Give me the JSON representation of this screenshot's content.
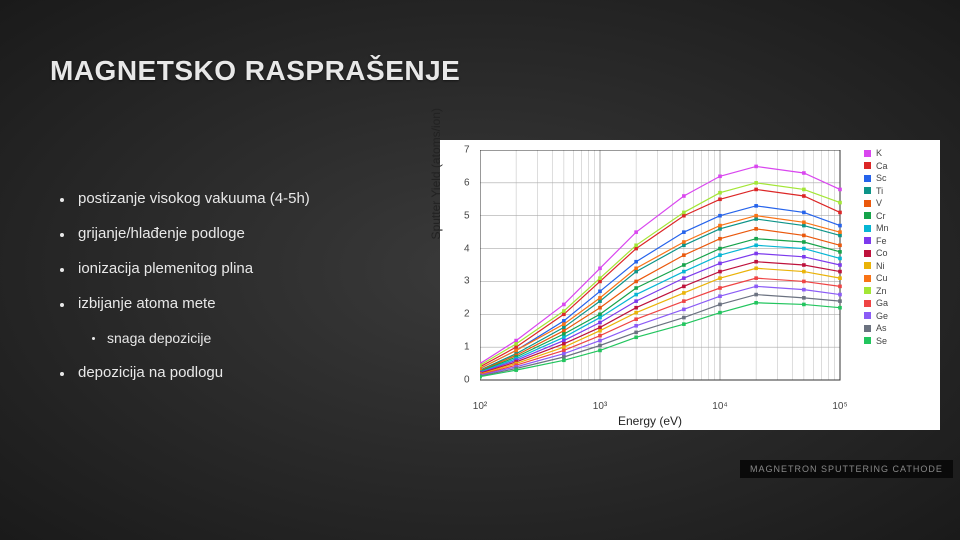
{
  "title": "MAGNETSKO RASPRAŠENJE",
  "bullets": [
    "postizanje visokog vakuuma (4-5h)",
    "grijanje/hlađenje podloge",
    "ionizacija plemenitog plina",
    "izbijanje atoma mete"
  ],
  "sub_bullet": "snaga depozicije",
  "bullet_after_sub": "depozicija na podlogu",
  "caption_behind": "MAGNETRON SPUTTERING CATHODE",
  "chart": {
    "type": "line",
    "xlabel": "Energy (eV)",
    "ylabel": "Sputter Yield (atoms/ion)",
    "xscale": "log",
    "xlim": [
      100,
      100000
    ],
    "ylim": [
      0,
      7
    ],
    "xticks": [
      100,
      1000,
      10000,
      100000
    ],
    "xtick_labels": [
      "10²",
      "10³",
      "10⁴",
      "10⁵"
    ],
    "yticks": [
      0,
      1,
      2,
      3,
      4,
      5,
      6,
      7
    ],
    "background_color": "#ffffff",
    "grid_color": "#aaaaaa",
    "axis_fontsize": 12,
    "tick_fontsize": 10,
    "legend_fontsize": 9,
    "series": [
      {
        "label": "K",
        "color": "#d946ef",
        "marker": "square",
        "x": [
          100,
          200,
          500,
          1000,
          2000,
          5000,
          10000,
          20000,
          50000,
          100000
        ],
        "y": [
          0.5,
          1.2,
          2.3,
          3.4,
          4.5,
          5.6,
          6.2,
          6.5,
          6.3,
          5.8
        ]
      },
      {
        "label": "Ca",
        "color": "#dc2626",
        "marker": "circle",
        "x": [
          100,
          200,
          500,
          1000,
          2000,
          5000,
          10000,
          20000,
          50000,
          100000
        ],
        "y": [
          0.4,
          1.0,
          2.0,
          3.0,
          4.0,
          5.0,
          5.5,
          5.8,
          5.6,
          5.1
        ]
      },
      {
        "label": "Sc",
        "color": "#2563eb",
        "marker": "x",
        "x": [
          100,
          200,
          500,
          1000,
          2000,
          5000,
          10000,
          20000,
          50000,
          100000
        ],
        "y": [
          0.35,
          0.9,
          1.8,
          2.7,
          3.6,
          4.5,
          5.0,
          5.3,
          5.1,
          4.7
        ]
      },
      {
        "label": "Ti",
        "color": "#0d9488",
        "marker": "triangle",
        "x": [
          100,
          200,
          500,
          1000,
          2000,
          5000,
          10000,
          20000,
          50000,
          100000
        ],
        "y": [
          0.3,
          0.8,
          1.6,
          2.4,
          3.3,
          4.1,
          4.6,
          4.9,
          4.7,
          4.4
        ]
      },
      {
        "label": "V",
        "color": "#ea580c",
        "marker": "diamond",
        "x": [
          100,
          200,
          500,
          1000,
          2000,
          5000,
          10000,
          20000,
          50000,
          100000
        ],
        "y": [
          0.28,
          0.75,
          1.5,
          2.2,
          3.0,
          3.8,
          4.3,
          4.6,
          4.4,
          4.1
        ]
      },
      {
        "label": "Cr",
        "color": "#16a34a",
        "marker": "plus",
        "x": [
          100,
          200,
          500,
          1000,
          2000,
          5000,
          10000,
          20000,
          50000,
          100000
        ],
        "y": [
          0.26,
          0.7,
          1.4,
          2.0,
          2.8,
          3.5,
          4.0,
          4.3,
          4.2,
          3.9
        ]
      },
      {
        "label": "Mn",
        "color": "#06b6d4",
        "marker": "triangle",
        "x": [
          100,
          200,
          500,
          1000,
          2000,
          5000,
          10000,
          20000,
          50000,
          100000
        ],
        "y": [
          0.24,
          0.65,
          1.3,
          1.9,
          2.6,
          3.3,
          3.8,
          4.1,
          4.0,
          3.7
        ]
      },
      {
        "label": "Fe",
        "color": "#7c3aed",
        "marker": "square",
        "x": [
          100,
          200,
          500,
          1000,
          2000,
          5000,
          10000,
          20000,
          50000,
          100000
        ],
        "y": [
          0.22,
          0.6,
          1.2,
          1.75,
          2.4,
          3.1,
          3.55,
          3.85,
          3.75,
          3.5
        ]
      },
      {
        "label": "Co",
        "color": "#be123c",
        "marker": "square",
        "x": [
          100,
          200,
          500,
          1000,
          2000,
          5000,
          10000,
          20000,
          50000,
          100000
        ],
        "y": [
          0.2,
          0.55,
          1.1,
          1.6,
          2.2,
          2.85,
          3.3,
          3.6,
          3.5,
          3.3
        ]
      },
      {
        "label": "Ni",
        "color": "#eab308",
        "marker": "circle",
        "x": [
          100,
          200,
          500,
          1000,
          2000,
          5000,
          10000,
          20000,
          50000,
          100000
        ],
        "y": [
          0.18,
          0.5,
          1.0,
          1.5,
          2.05,
          2.65,
          3.1,
          3.4,
          3.3,
          3.1
        ]
      },
      {
        "label": "Cu",
        "color": "#f97316",
        "marker": "square",
        "x": [
          100,
          200,
          500,
          1000,
          2000,
          5000,
          10000,
          20000,
          50000,
          100000
        ],
        "y": [
          0.35,
          0.9,
          1.7,
          2.5,
          3.4,
          4.2,
          4.7,
          5.0,
          4.8,
          4.5
        ]
      },
      {
        "label": "Zn",
        "color": "#a3e635",
        "marker": "triangle",
        "x": [
          100,
          200,
          500,
          1000,
          2000,
          5000,
          10000,
          20000,
          50000,
          100000
        ],
        "y": [
          0.45,
          1.1,
          2.1,
          3.1,
          4.1,
          5.1,
          5.7,
          6.0,
          5.8,
          5.4
        ]
      },
      {
        "label": "Ga",
        "color": "#ef4444",
        "marker": "plus",
        "x": [
          100,
          200,
          500,
          1000,
          2000,
          5000,
          10000,
          20000,
          50000,
          100000
        ],
        "y": [
          0.16,
          0.45,
          0.9,
          1.35,
          1.85,
          2.4,
          2.8,
          3.1,
          3.0,
          2.85
        ]
      },
      {
        "label": "Ge",
        "color": "#8b5cf6",
        "marker": "x",
        "x": [
          100,
          200,
          500,
          1000,
          2000,
          5000,
          10000,
          20000,
          50000,
          100000
        ],
        "y": [
          0.14,
          0.4,
          0.8,
          1.2,
          1.65,
          2.15,
          2.55,
          2.85,
          2.75,
          2.6
        ]
      },
      {
        "label": "As",
        "color": "#6b7280",
        "marker": "star",
        "x": [
          100,
          200,
          500,
          1000,
          2000,
          5000,
          10000,
          20000,
          50000,
          100000
        ],
        "y": [
          0.12,
          0.35,
          0.7,
          1.05,
          1.45,
          1.9,
          2.3,
          2.6,
          2.5,
          2.4
        ]
      },
      {
        "label": "Se",
        "color": "#22c55e",
        "marker": "circle",
        "x": [
          100,
          200,
          500,
          1000,
          2000,
          5000,
          10000,
          20000,
          50000,
          100000
        ],
        "y": [
          0.1,
          0.3,
          0.6,
          0.9,
          1.3,
          1.7,
          2.05,
          2.35,
          2.3,
          2.2
        ]
      }
    ]
  }
}
